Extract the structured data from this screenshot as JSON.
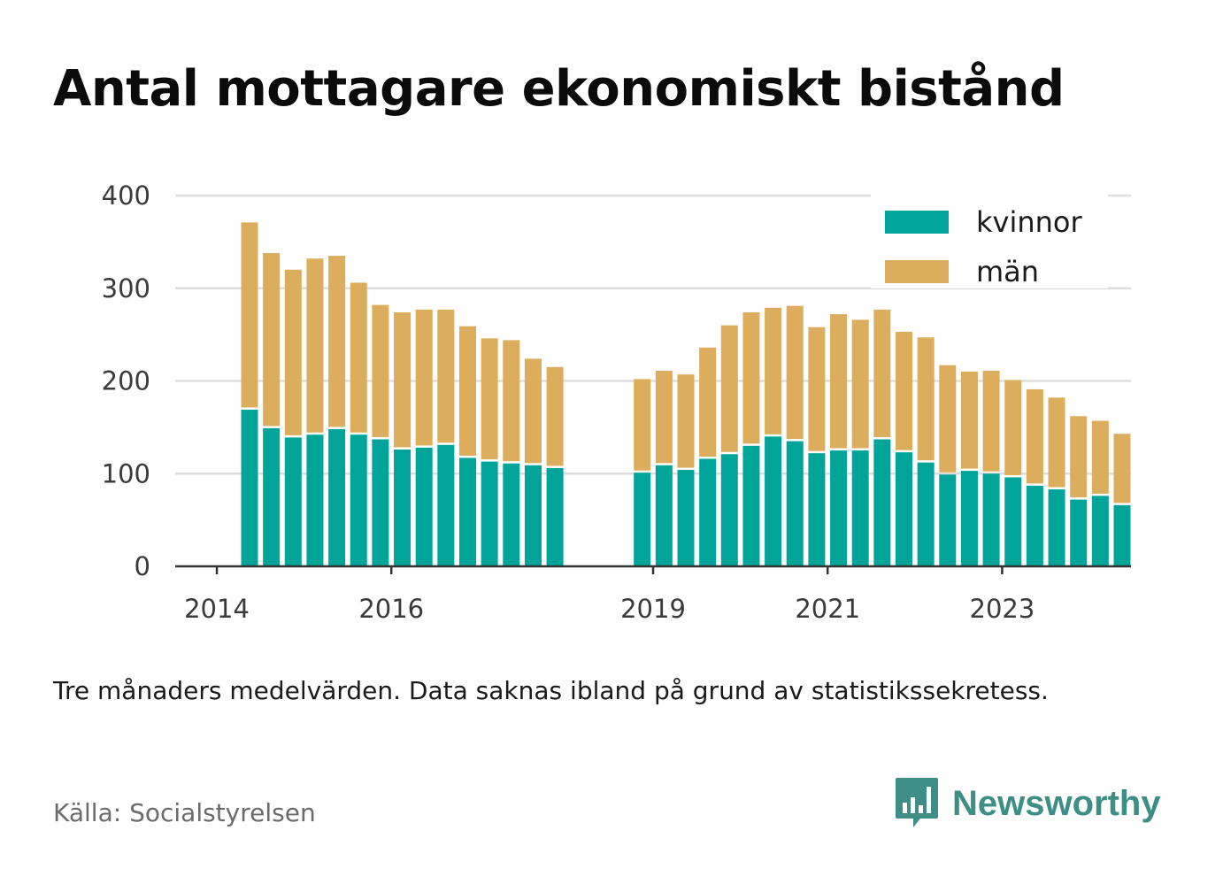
{
  "title": "Antal mottagare ekonomiskt bistånd",
  "note": "Tre månaders medelvärden. Data saknas ibland på grund av statistikssekretess.",
  "source": "Källa: Socialstyrelsen",
  "brand": {
    "name": "Newsworthy",
    "icon": "newsworthy-logo-icon",
    "color": "#3d8f86"
  },
  "colors": {
    "kvinnor": "#00a498",
    "man": "#dcad5c",
    "grid": "#dddddd",
    "axis": "#333333"
  },
  "chart_data": {
    "type": "bar",
    "stacked": true,
    "ylim": [
      0,
      400
    ],
    "yticks": [
      0,
      100,
      200,
      300,
      400
    ],
    "xticks": [
      "2014",
      "2016",
      "2019",
      "2021",
      "2023"
    ],
    "legend": {
      "position": "top-right",
      "entries": [
        "kvinnor",
        "män"
      ]
    },
    "grid": true,
    "categories": [
      "2014-Q2",
      "2014-Q3",
      "2014-Q4",
      "2015-Q1",
      "2015-Q2",
      "2015-Q3",
      "2015-Q4",
      "2016-Q1",
      "2016-Q2",
      "2016-Q3",
      "2016-Q4",
      "2017-Q1",
      "2017-Q2",
      "2017-Q3",
      "2017-Q4",
      "2018-Q1",
      "2018-Q2",
      "2018-Q4",
      "2019-Q1",
      "2019-Q2",
      "2019-Q3",
      "2019-Q4",
      "2020-Q1",
      "2020-Q2",
      "2020-Q3",
      "2020-Q4",
      "2021-Q1",
      "2021-Q2",
      "2021-Q3",
      "2021-Q4",
      "2022-Q1",
      "2022-Q2",
      "2022-Q3",
      "2022-Q4",
      "2023-Q1",
      "2023-Q2",
      "2023-Q3",
      "2023-Q4",
      "2024-Q1",
      "2024-Q2"
    ],
    "series": [
      {
        "name": "kvinnor",
        "values": [
          169,
          149,
          139,
          142,
          148,
          142,
          137,
          126,
          128,
          131,
          117,
          113,
          111,
          109,
          106,
          null,
          null,
          101,
          109,
          104,
          116,
          121,
          130,
          140,
          135,
          122,
          125,
          125,
          137,
          123,
          112,
          99,
          103,
          100,
          96,
          87,
          83,
          72,
          76,
          66
        ]
      },
      {
        "name": "män",
        "values": [
          202,
          189,
          181,
          190,
          187,
          164,
          145,
          148,
          149,
          146,
          142,
          133,
          133,
          115,
          109,
          null,
          null,
          101,
          102,
          103,
          120,
          139,
          144,
          139,
          146,
          136,
          147,
          141,
          140,
          130,
          135,
          118,
          107,
          111,
          105,
          104,
          99,
          90,
          81,
          77
        ]
      }
    ]
  }
}
